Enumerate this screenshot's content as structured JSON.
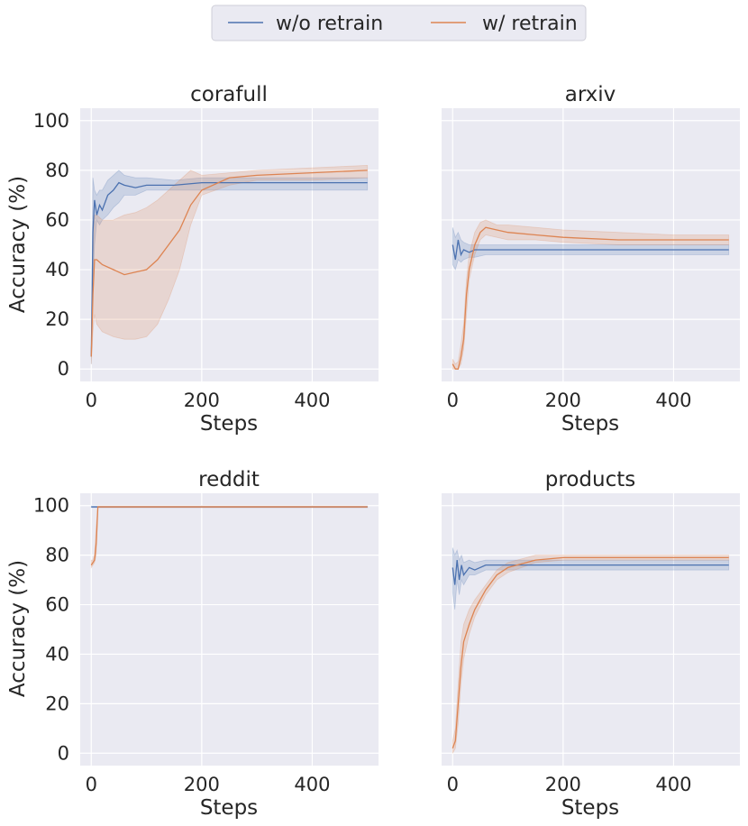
{
  "legend": {
    "items": [
      {
        "label": "w/o retrain",
        "color": "#4c72b0"
      },
      {
        "label": "w/ retrain",
        "color": "#dd8452"
      }
    ]
  },
  "chart_data": [
    {
      "type": "line",
      "title": "corafull",
      "xlabel": "Steps",
      "ylabel": "Accuracy (%)",
      "xlim": [
        -20,
        520
      ],
      "ylim": [
        -5,
        105
      ],
      "xticks": [
        0,
        200,
        400
      ],
      "yticks": [
        0,
        20,
        40,
        60,
        80,
        100
      ],
      "grid": true,
      "series": [
        {
          "name": "w/o retrain",
          "color": "#4c72b0",
          "x": [
            0,
            3,
            6,
            10,
            15,
            20,
            30,
            40,
            50,
            60,
            80,
            100,
            150,
            200,
            250,
            300,
            400,
            500
          ],
          "y": [
            5,
            55,
            68,
            62,
            66,
            64,
            70,
            72,
            75,
            74,
            73,
            74,
            74,
            75,
            75,
            75,
            75,
            75
          ],
          "lower": [
            2,
            35,
            50,
            60,
            58,
            60,
            62,
            65,
            67,
            70,
            70,
            72,
            72,
            72,
            72,
            72,
            72,
            72
          ],
          "upper": [
            10,
            77,
            72,
            70,
            72,
            72,
            76,
            78,
            80,
            78,
            77,
            77,
            76,
            77,
            77,
            77,
            77,
            77
          ]
        },
        {
          "name": "w/ retrain",
          "color": "#dd8452",
          "x": [
            0,
            3,
            6,
            10,
            20,
            40,
            60,
            80,
            100,
            120,
            140,
            160,
            180,
            200,
            250,
            300,
            400,
            500
          ],
          "y": [
            5,
            30,
            44,
            44,
            42,
            40,
            38,
            39,
            40,
            44,
            50,
            56,
            66,
            72,
            77,
            78,
            79,
            80
          ],
          "lower": [
            2,
            15,
            22,
            18,
            15,
            13,
            12,
            12,
            13,
            18,
            28,
            40,
            58,
            70,
            74,
            76,
            76,
            77
          ],
          "upper": [
            8,
            45,
            62,
            62,
            60,
            60,
            62,
            63,
            65,
            68,
            72,
            76,
            80,
            78,
            79,
            80,
            81,
            82
          ]
        }
      ]
    },
    {
      "type": "line",
      "title": "arxiv",
      "xlabel": "Steps",
      "ylabel": "",
      "xlim": [
        -20,
        520
      ],
      "ylim": [
        -5,
        105
      ],
      "xticks": [
        0,
        200,
        400
      ],
      "yticks": [
        0,
        20,
        40,
        60,
        80,
        100
      ],
      "grid": true,
      "series": [
        {
          "name": "w/o retrain",
          "color": "#4c72b0",
          "x": [
            0,
            5,
            10,
            15,
            20,
            30,
            40,
            60,
            100,
            200,
            300,
            400,
            500
          ],
          "y": [
            50,
            44,
            52,
            46,
            48,
            47,
            48,
            48,
            48,
            48,
            48,
            48,
            48
          ],
          "lower": [
            42,
            40,
            44,
            43,
            44,
            45,
            45,
            46,
            46,
            46,
            46,
            46,
            46
          ],
          "upper": [
            57,
            53,
            55,
            52,
            51,
            50,
            50,
            50,
            50,
            50,
            50,
            50,
            50
          ]
        },
        {
          "name": "w/ retrain",
          "color": "#dd8452",
          "x": [
            0,
            5,
            10,
            15,
            20,
            25,
            30,
            40,
            50,
            60,
            80,
            100,
            150,
            200,
            300,
            400,
            500
          ],
          "y": [
            2,
            0,
            0,
            5,
            12,
            30,
            40,
            50,
            55,
            57,
            56,
            55,
            54,
            53,
            52,
            52,
            52
          ],
          "lower": [
            0,
            0,
            0,
            2,
            8,
            22,
            36,
            46,
            52,
            54,
            53,
            52,
            52,
            51,
            50,
            50,
            50
          ],
          "upper": [
            4,
            2,
            3,
            10,
            18,
            36,
            46,
            55,
            59,
            60,
            58,
            58,
            57,
            56,
            55,
            54,
            54
          ]
        }
      ]
    },
    {
      "type": "line",
      "title": "reddit",
      "xlabel": "Steps",
      "ylabel": "Accuracy (%)",
      "xlim": [
        -20,
        520
      ],
      "ylim": [
        -5,
        105
      ],
      "xticks": [
        0,
        200,
        400
      ],
      "yticks": [
        0,
        20,
        40,
        60,
        80,
        100
      ],
      "grid": true,
      "series": [
        {
          "name": "w/o retrain",
          "color": "#4c72b0",
          "x": [
            0,
            5,
            10,
            15,
            500
          ],
          "y": [
            99.5,
            99.5,
            99.5,
            99.5,
            99.5
          ],
          "lower": [
            99.2,
            99.2,
            99.2,
            99.2,
            99.2
          ],
          "upper": [
            99.8,
            99.8,
            99.8,
            99.8,
            99.8
          ]
        },
        {
          "name": "w/ retrain",
          "color": "#dd8452",
          "x": [
            0,
            3,
            6,
            9,
            12,
            500
          ],
          "y": [
            76,
            77,
            78,
            85,
            99.5,
            99.5
          ],
          "lower": [
            75,
            76,
            77,
            80,
            99.2,
            99.2
          ],
          "upper": [
            78,
            78,
            80,
            92,
            99.8,
            99.8
          ]
        }
      ]
    },
    {
      "type": "line",
      "title": "products",
      "xlabel": "Steps",
      "ylabel": "",
      "xlim": [
        -20,
        520
      ],
      "ylim": [
        -5,
        105
      ],
      "xticks": [
        0,
        200,
        400
      ],
      "yticks": [
        0,
        20,
        40,
        60,
        80,
        100
      ],
      "grid": true,
      "series": [
        {
          "name": "w/o retrain",
          "color": "#4c72b0",
          "x": [
            0,
            4,
            8,
            12,
            16,
            20,
            30,
            40,
            60,
            100,
            200,
            300,
            400,
            500
          ],
          "y": [
            75,
            68,
            78,
            70,
            76,
            72,
            75,
            74,
            76,
            76,
            76,
            76,
            76,
            76
          ],
          "lower": [
            65,
            58,
            70,
            64,
            70,
            68,
            72,
            72,
            74,
            74,
            74,
            74,
            74,
            74
          ],
          "upper": [
            83,
            80,
            82,
            78,
            80,
            77,
            78,
            77,
            78,
            78,
            78,
            78,
            78,
            78
          ]
        },
        {
          "name": "w/ retrain",
          "color": "#dd8452",
          "x": [
            0,
            5,
            10,
            15,
            20,
            30,
            40,
            60,
            80,
            100,
            150,
            200,
            300,
            400,
            500
          ],
          "y": [
            2,
            5,
            20,
            35,
            45,
            52,
            58,
            66,
            72,
            75,
            78,
            79,
            79,
            79,
            79
          ],
          "lower": [
            0,
            2,
            12,
            28,
            38,
            48,
            55,
            64,
            70,
            73,
            77,
            78,
            78,
            78,
            78
          ],
          "upper": [
            5,
            10,
            28,
            45,
            52,
            58,
            62,
            68,
            74,
            77,
            80,
            80,
            80,
            80,
            80
          ]
        }
      ]
    }
  ]
}
